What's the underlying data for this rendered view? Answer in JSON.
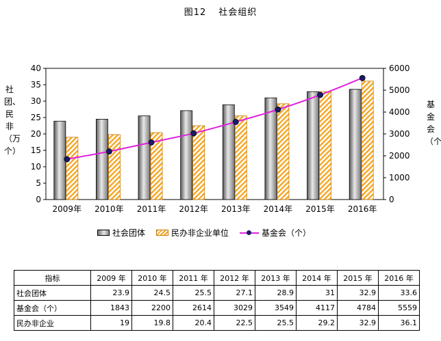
{
  "title": {
    "fig": "图12",
    "name": "社会组织"
  },
  "legend": {
    "series1": "社会团体",
    "series2": "民办非企业单位",
    "series3": "基金会（个）"
  },
  "axes": {
    "left_label": "社团、民非（万个）",
    "right_label": "基金会（个）"
  },
  "colors": {
    "line": "#e020e0",
    "marker": "#1a1a6a",
    "hatch": "#f5a623",
    "bar_gray": "#8a8a8a"
  },
  "chart_data": {
    "type": "bar",
    "categories": [
      "2009年",
      "2010年",
      "2011年",
      "2012年",
      "2013年",
      "2014年",
      "2015年",
      "2016年"
    ],
    "series": [
      {
        "name": "社会团体",
        "type": "bar",
        "axis": "left",
        "values": [
          23.9,
          24.5,
          25.5,
          27.1,
          28.9,
          31,
          32.9,
          33.6
        ]
      },
      {
        "name": "民办非企业单位",
        "type": "bar",
        "axis": "left",
        "values": [
          19,
          19.8,
          20.4,
          22.5,
          25.5,
          29.2,
          32.9,
          36.1
        ]
      },
      {
        "name": "基金会（个）",
        "type": "line",
        "axis": "right",
        "values": [
          1843,
          2200,
          2614,
          3029,
          3549,
          4117,
          4784,
          5559
        ]
      }
    ],
    "ylim_left": [
      0,
      40
    ],
    "yticks_left": [
      "0",
      "5",
      "10",
      "15",
      "20",
      "25",
      "30",
      "35",
      "40"
    ],
    "ylim_right": [
      0,
      6000
    ],
    "yticks_right": [
      "0",
      "1000",
      "2000",
      "3000",
      "4000",
      "5000",
      "6000"
    ],
    "legend_position": "bottom"
  },
  "table": {
    "header": [
      "指标",
      "2009 年",
      "2010 年",
      "2011 年",
      "2012 年",
      "2013 年",
      "2014 年",
      "2015 年",
      "2016 年"
    ],
    "rows": [
      {
        "name": "社会团体",
        "values": [
          "23.9",
          "24.5",
          "25.5",
          "27.1",
          "28.9",
          "31",
          "32.9",
          "33.6"
        ]
      },
      {
        "name": "基金会（个）",
        "values": [
          "1843",
          "2200",
          "2614",
          "3029",
          "3549",
          "4117",
          "4784",
          "5559"
        ]
      },
      {
        "name": "民办非企业",
        "values": [
          "19",
          "19.8",
          "20.4",
          "22.5",
          "25.5",
          "29.2",
          "32.9",
          "36.1"
        ]
      }
    ]
  }
}
